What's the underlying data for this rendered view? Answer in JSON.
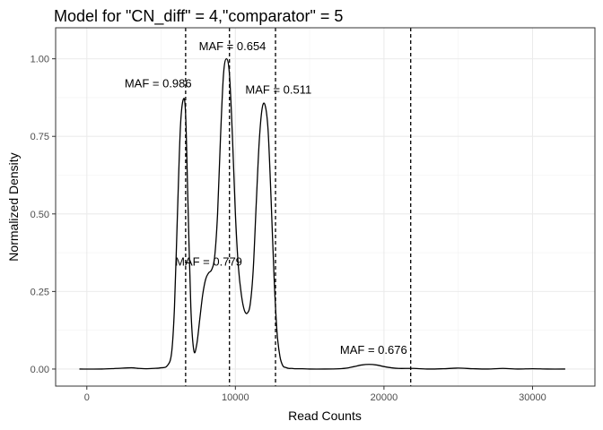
{
  "chart_data": {
    "type": "line",
    "title": "Model for \"CN_diff\" = 4,\"comparator\" = 5",
    "xlabel": "Read Counts",
    "ylabel": "Normalized Density",
    "xlim": [
      -2100,
      34200
    ],
    "ylim": [
      -0.055,
      1.1
    ],
    "x_ticks": [
      0,
      10000,
      20000,
      30000
    ],
    "x_tick_labels": [
      "0",
      "10000",
      "20000",
      "30000"
    ],
    "y_ticks": [
      0,
      0.25,
      0.5,
      0.75,
      1.0
    ],
    "y_tick_labels": [
      "0.00",
      "0.25",
      "0.50",
      "0.75",
      "1.00"
    ],
    "grid": true,
    "series": [
      {
        "x": [
          -500,
          1000,
          2000,
          3000,
          3500,
          4000,
          4500,
          5000,
          5400,
          5700,
          5900,
          6100,
          6300,
          6500,
          6650,
          6800,
          7000,
          7200,
          7400,
          7600,
          7800,
          8000,
          8200,
          8400,
          8600,
          8800,
          9000,
          9200,
          9400,
          9600,
          9800,
          10000,
          10200,
          10400,
          10600,
          10800,
          11000,
          11200,
          11400,
          11600,
          11800,
          12000,
          12200,
          12400,
          12600,
          12800,
          13000,
          13200,
          13400,
          13600,
          13800,
          14000,
          14500,
          15000,
          16000,
          17000,
          17500,
          18000,
          18500,
          19000,
          19500,
          20000,
          20500,
          21000,
          22000,
          23000,
          24000,
          25000,
          26000,
          27000,
          28000,
          29000,
          30000,
          31000,
          32200
        ],
        "y": [
          0.0,
          0.0,
          0.002,
          0.004,
          0.002,
          0.001,
          0.002,
          0.004,
          0.01,
          0.05,
          0.2,
          0.5,
          0.78,
          0.87,
          0.82,
          0.55,
          0.2,
          0.06,
          0.08,
          0.16,
          0.24,
          0.29,
          0.31,
          0.32,
          0.36,
          0.5,
          0.75,
          0.95,
          1.0,
          0.95,
          0.75,
          0.5,
          0.33,
          0.24,
          0.19,
          0.18,
          0.21,
          0.32,
          0.53,
          0.73,
          0.84,
          0.85,
          0.77,
          0.55,
          0.3,
          0.12,
          0.04,
          0.01,
          0.005,
          0.002,
          0.002,
          0.001,
          0.001,
          0.0,
          0.0,
          0.001,
          0.003,
          0.008,
          0.013,
          0.015,
          0.013,
          0.008,
          0.004,
          0.002,
          0.002,
          0.0,
          0.001,
          0.003,
          0.001,
          0.0,
          0.002,
          0.0,
          0.001,
          0.0,
          0.0
        ]
      }
    ],
    "vlines": [
      {
        "x": 6650,
        "label": "MAF = 0.986",
        "label_x": 4800,
        "label_y": 0.92
      },
      {
        "x": 9600,
        "label": "MAF = 0.779",
        "label_x": 8200,
        "label_y": 0.345
      },
      {
        "x": 12700,
        "label": "MAF = 0.654",
        "label_x": 9800,
        "label_y": 1.04
      },
      {
        "x": 21800,
        "label": "MAF = 0.511",
        "label_x": 12900,
        "label_y": 0.9
      },
      {
        "x": 21800,
        "label": "MAF = 0.676",
        "label_x": 19300,
        "label_y": 0.06
      }
    ]
  }
}
